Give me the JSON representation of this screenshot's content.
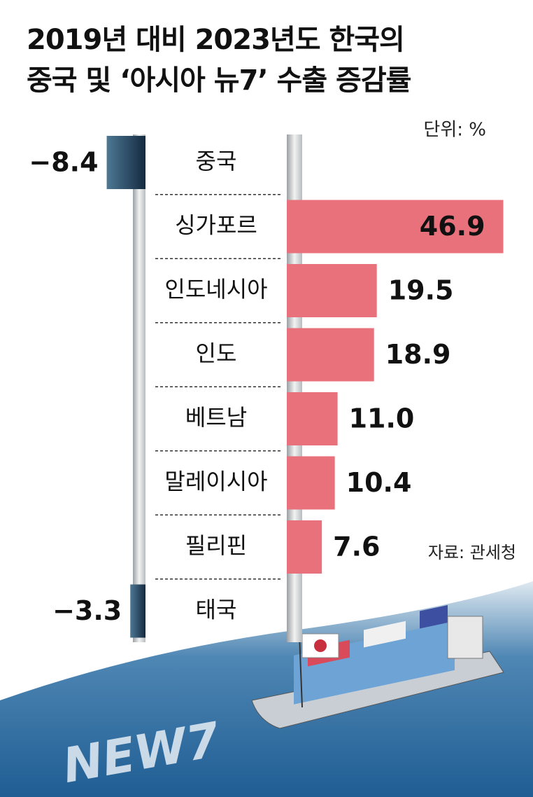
{
  "chart_data": {
    "type": "bar",
    "orientation": "horizontal",
    "title": "2019년 대비 2023년도 한국의\n중국 및 ‘아시아 뉴7’ 수출 증감률",
    "unit": "단위: %",
    "source": "자료: 관세청",
    "categories": [
      "중국",
      "싱가포르",
      "인도네시아",
      "인도",
      "베트남",
      "말레이시아",
      "필리핀",
      "태국"
    ],
    "values": [
      -8.4,
      46.9,
      19.5,
      18.9,
      11.0,
      10.4,
      7.6,
      -3.3
    ],
    "value_labels": [
      "−8.4",
      "46.9",
      "19.5",
      "18.9",
      "11.0",
      "10.4",
      "7.6",
      "−3.3"
    ],
    "positive_color": "#e8717b",
    "negative_color": "#1d3a57"
  },
  "illustration": {
    "text": "NEW7"
  }
}
